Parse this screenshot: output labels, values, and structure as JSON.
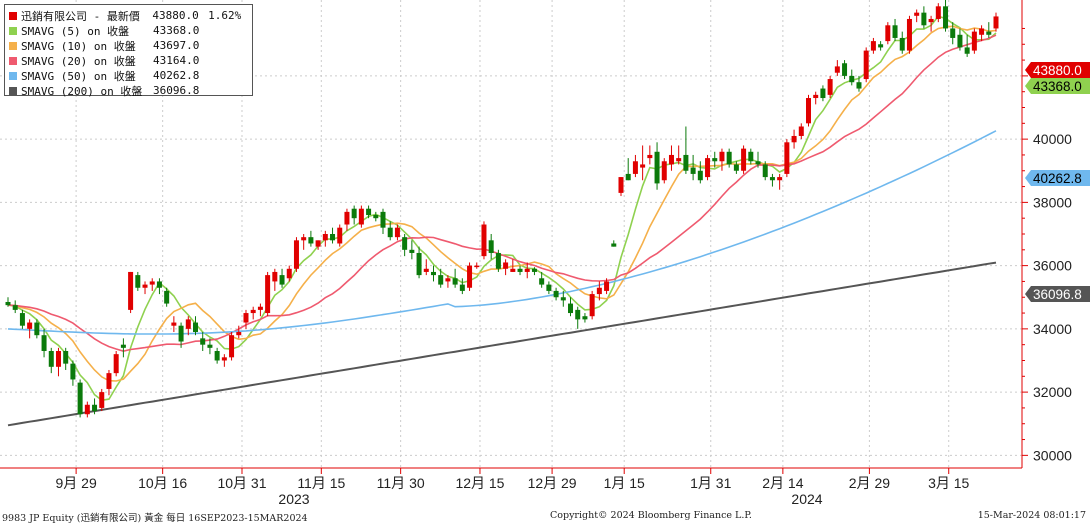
{
  "legend": [
    {
      "name": "迅銷有限公司 - 最新價",
      "value": "43880.0",
      "pct": "1.62%",
      "color": "#e00000"
    },
    {
      "name": "SMAVG (5)  on 收盤",
      "value": "43368.0",
      "color": "#8fd14f"
    },
    {
      "name": "SMAVG (10)  on 收盤",
      "value": "43697.0",
      "color": "#f5b04a"
    },
    {
      "name": "SMAVG (20)  on 收盤",
      "value": "43164.0",
      "color": "#ef5a6f"
    },
    {
      "name": "SMAVG (50)  on 收盤",
      "value": "40262.8",
      "color": "#6fb8ee"
    },
    {
      "name": "SMAVG (200) on 收盤",
      "value": "36096.8",
      "color": "#555555"
    }
  ],
  "footer": {
    "left": "9983 JP Equity (迅銷有限公司) 黃金  每日 16SEP2023-15MAR2024",
    "middle": "Copyright© 2024 Bloomberg Finance L.P.",
    "right": "15-Mar-2024 08:01:17"
  },
  "colors": {
    "up": "#e00000",
    "down": "#0b7a0b",
    "axis": "#e00000",
    "grid": "#cccccc"
  },
  "chart_data": {
    "type": "candlestick",
    "x_tick_labels": [
      "9月 29",
      "10月 16",
      "10月 31",
      "11月 15",
      "11月 30",
      "12月 15",
      "12月 29",
      "1月 15",
      "1月 31",
      "2月 14",
      "2月 29",
      "3月 15"
    ],
    "x_year_labels": [
      "2023",
      "2024"
    ],
    "y_ticks": [
      30000,
      32000,
      34000,
      36000,
      38000,
      40000,
      42000
    ],
    "ylim": [
      29600,
      44400
    ],
    "last_value_labels": [
      {
        "text": "43880.0",
        "value": 43880,
        "bg": "#e00000",
        "fg": "#ffffff"
      },
      {
        "text": "43368.0",
        "value": 43368,
        "bg": "#8fd14f",
        "fg": "#000000"
      },
      {
        "text": "40262.8",
        "value": 40262.8,
        "bg": "#6fb8ee",
        "fg": "#000000"
      },
      {
        "text": "36096.8",
        "value": 36096.8,
        "bg": "#555555",
        "fg": "#ffffff"
      }
    ],
    "candles": [
      [
        34850,
        35000,
        34700,
        34750
      ],
      [
        34750,
        34900,
        34500,
        34600
      ],
      [
        34500,
        34600,
        34000,
        34100
      ],
      [
        34000,
        34300,
        33700,
        34200
      ],
      [
        34200,
        34300,
        33700,
        33800
      ],
      [
        33800,
        34000,
        33100,
        33300
      ],
      [
        33300,
        33400,
        32600,
        32800
      ],
      [
        32800,
        33400,
        32500,
        33300
      ],
      [
        33300,
        33400,
        32700,
        32900
      ],
      [
        32900,
        33000,
        32200,
        32400
      ],
      [
        32300,
        32400,
        31200,
        31300
      ],
      [
        31300,
        31700,
        31200,
        31600
      ],
      [
        31600,
        31800,
        31300,
        31400
      ],
      [
        31500,
        32100,
        31400,
        32000
      ],
      [
        32100,
        32700,
        31900,
        32600
      ],
      [
        32600,
        33300,
        32500,
        33200
      ],
      [
        33500,
        33700,
        33100,
        33400
      ],
      [
        34600,
        35800,
        34500,
        35800
      ],
      [
        35700,
        35800,
        35200,
        35300
      ],
      [
        35300,
        35500,
        35100,
        35400
      ],
      [
        35400,
        35600,
        35200,
        35500
      ],
      [
        35500,
        35600,
        35100,
        35300
      ],
      [
        35200,
        35300,
        34700,
        34800
      ],
      [
        34100,
        34400,
        33900,
        34200
      ],
      [
        34100,
        34200,
        33400,
        33600
      ],
      [
        34000,
        34400,
        33800,
        34300
      ],
      [
        34200,
        34400,
        33800,
        33900
      ],
      [
        33700,
        33900,
        33300,
        33500
      ],
      [
        33500,
        33700,
        33200,
        33400
      ],
      [
        33300,
        33400,
        32900,
        33000
      ],
      [
        33000,
        33200,
        32800,
        33100
      ],
      [
        33100,
        33900,
        33000,
        33800
      ],
      [
        33800,
        34100,
        33700,
        33900
      ],
      [
        34200,
        34600,
        34000,
        34500
      ],
      [
        34500,
        34700,
        34300,
        34600
      ],
      [
        34600,
        34800,
        34400,
        34700
      ],
      [
        34500,
        35800,
        34400,
        35700
      ],
      [
        35500,
        35900,
        35200,
        35800
      ],
      [
        35700,
        35900,
        35300,
        35400
      ],
      [
        35600,
        36000,
        35500,
        35900
      ],
      [
        35900,
        36900,
        35800,
        36800
      ],
      [
        36800,
        37000,
        36500,
        36900
      ],
      [
        36900,
        37100,
        36600,
        36700
      ],
      [
        36600,
        36800,
        36500,
        36800
      ],
      [
        36800,
        37100,
        36600,
        37000
      ],
      [
        37000,
        37200,
        36700,
        36800
      ],
      [
        36700,
        37300,
        36600,
        37200
      ],
      [
        37300,
        37800,
        37100,
        37700
      ],
      [
        37800,
        37900,
        37300,
        37500
      ],
      [
        37300,
        37900,
        37200,
        37800
      ],
      [
        37800,
        37900,
        37500,
        37600
      ],
      [
        37600,
        37700,
        37400,
        37500
      ],
      [
        37700,
        37800,
        37000,
        37200
      ],
      [
        37200,
        37400,
        36800,
        36900
      ],
      [
        36900,
        37300,
        36800,
        37200
      ],
      [
        36900,
        37000,
        36300,
        36500
      ],
      [
        36500,
        36800,
        36200,
        36400
      ],
      [
        36400,
        36600,
        35600,
        35700
      ],
      [
        35800,
        36200,
        35700,
        35900
      ],
      [
        35800,
        36000,
        35500,
        35700
      ],
      [
        35700,
        35900,
        35300,
        35400
      ],
      [
        35500,
        35700,
        35300,
        35600
      ],
      [
        35600,
        35900,
        35300,
        35400
      ],
      [
        35400,
        35600,
        35100,
        35200
      ],
      [
        35300,
        36100,
        35200,
        36000
      ],
      [
        36000,
        36100,
        35900,
        36000
      ],
      [
        36300,
        37400,
        36200,
        37300
      ],
      [
        36800,
        37000,
        36200,
        36400
      ],
      [
        36400,
        36500,
        35800,
        35900
      ],
      [
        35900,
        36200,
        35700,
        36100
      ],
      [
        35800,
        36200,
        35800,
        35900
      ],
      [
        35900,
        36000,
        35700,
        35800
      ],
      [
        35800,
        36100,
        35600,
        35900
      ],
      [
        35900,
        35950,
        35700,
        35800
      ],
      [
        35600,
        35800,
        35300,
        35400
      ],
      [
        35400,
        35500,
        35100,
        35200
      ],
      [
        35200,
        35300,
        34900,
        35000
      ],
      [
        35000,
        35200,
        34700,
        34900
      ],
      [
        34800,
        35000,
        34400,
        34500
      ],
      [
        34600,
        34700,
        34000,
        34300
      ],
      [
        34400,
        34500,
        34200,
        34300
      ],
      [
        34400,
        35200,
        34300,
        35100
      ],
      [
        35100,
        35500,
        34900,
        35300
      ],
      [
        35200,
        35600,
        35100,
        35500
      ],
      [
        36700,
        36800,
        36600,
        36600
      ],
      [
        38300,
        38800,
        38200,
        38800
      ],
      [
        38900,
        39400,
        38700,
        38700
      ],
      [
        38900,
        39500,
        38800,
        39300
      ],
      [
        39100,
        39800,
        38700,
        39200
      ],
      [
        39400,
        39800,
        39200,
        39500
      ],
      [
        39600,
        39900,
        38400,
        38600
      ],
      [
        38700,
        39400,
        38600,
        39300
      ],
      [
        39200,
        39800,
        39000,
        39500
      ],
      [
        39300,
        39800,
        39200,
        39400
      ],
      [
        39500,
        40400,
        38900,
        39000
      ],
      [
        39100,
        39500,
        38700,
        38900
      ],
      [
        39000,
        39300,
        38600,
        38700
      ],
      [
        38800,
        39500,
        38700,
        39400
      ],
      [
        39400,
        39600,
        39100,
        39300
      ],
      [
        39300,
        39700,
        39000,
        39600
      ],
      [
        39600,
        39700,
        39100,
        39200
      ],
      [
        39200,
        39300,
        38900,
        39000
      ],
      [
        39000,
        39800,
        38900,
        39700
      ],
      [
        39600,
        39700,
        39200,
        39300
      ],
      [
        39300,
        39600,
        39100,
        39200
      ],
      [
        39200,
        39300,
        38700,
        38800
      ],
      [
        38800,
        38900,
        38500,
        38700
      ],
      [
        38700,
        38900,
        38400,
        38800
      ],
      [
        38900,
        40000,
        38800,
        39900
      ],
      [
        39900,
        40300,
        39700,
        40100
      ],
      [
        40100,
        40500,
        40000,
        40400
      ],
      [
        40500,
        41400,
        40400,
        41300
      ],
      [
        41300,
        41500,
        41100,
        41400
      ],
      [
        41600,
        41700,
        41200,
        41300
      ],
      [
        41400,
        42000,
        41300,
        41900
      ],
      [
        42100,
        42500,
        42000,
        42300
      ],
      [
        42400,
        42500,
        41900,
        42000
      ],
      [
        42000,
        42200,
        41700,
        41800
      ],
      [
        41800,
        42000,
        41500,
        41600
      ],
      [
        41900,
        42900,
        41800,
        42800
      ],
      [
        42800,
        43200,
        42700,
        43100
      ],
      [
        43000,
        43100,
        42800,
        42900
      ],
      [
        43100,
        43700,
        43000,
        43600
      ],
      [
        43600,
        43800,
        43100,
        43200
      ],
      [
        43200,
        43400,
        42700,
        42800
      ],
      [
        42800,
        43900,
        42700,
        43800
      ],
      [
        43900,
        44100,
        43700,
        44000
      ],
      [
        44000,
        44200,
        43500,
        43600
      ],
      [
        43700,
        43900,
        43400,
        43800
      ],
      [
        43800,
        44300,
        43700,
        44200
      ],
      [
        44200,
        44400,
        43400,
        43500
      ],
      [
        43500,
        43700,
        43000,
        43200
      ],
      [
        43300,
        43500,
        42800,
        42900
      ],
      [
        42900,
        43300,
        42600,
        42700
      ],
      [
        42800,
        43500,
        42700,
        43400
      ],
      [
        43300,
        43600,
        43100,
        43500
      ],
      [
        43400,
        43700,
        43200,
        43300
      ],
      [
        43500,
        44000,
        43400,
        43880
      ]
    ],
    "ma_recent_values": {
      "SMAVG (5)": 43368.0,
      "SMAVG (10)": 43697.0,
      "SMAVG (20)": 43164.0,
      "SMAVG (50)": 40262.8,
      "SMAVG (200)": 36096.8
    }
  }
}
